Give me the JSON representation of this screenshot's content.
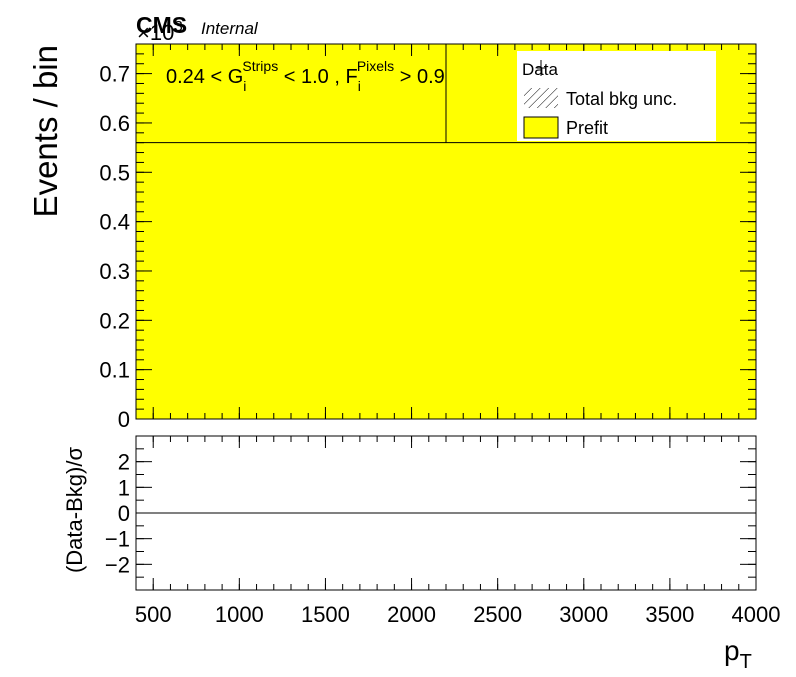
{
  "header": {
    "cms_label": "CMS",
    "internal_label": "Internal",
    "exponent_label": "×10",
    "exponent_power": "3"
  },
  "region_label": {
    "part1": "0.24 < G",
    "g_sub": "i",
    "g_sup": "Strips",
    "part2": " < 1.0 , F",
    "f_sub": "i",
    "f_sup": "Pixels",
    "part3": " > 0.9"
  },
  "legend": {
    "items": [
      {
        "label": "Data",
        "marker": "point"
      },
      {
        "label": "Total bkg unc.",
        "marker": "hatch"
      },
      {
        "label": "Prefit",
        "marker": "fill"
      }
    ]
  },
  "colors": {
    "prefit_fill": "#ffff00",
    "axis": "#000000",
    "background": "#ffffff"
  },
  "chart_data": [
    {
      "type": "bar",
      "panel": "main",
      "ylabel": "Events / bin",
      "y_multiplier": "×10^3",
      "ylim": [
        0,
        0.76
      ],
      "yticks": [
        0,
        0.1,
        0.2,
        0.3,
        0.4,
        0.5,
        0.6,
        0.7
      ],
      "ytick_labels": [
        "0",
        "0.1",
        "0.2",
        "0.3",
        "0.4",
        "0.5",
        "0.6",
        "0.7"
      ],
      "xlim": [
        400,
        4000
      ],
      "bins": [
        {
          "x_low": 400,
          "x_high": 2200,
          "prefit": 0.56
        },
        {
          "x_low": 2200,
          "x_high": 4000,
          "prefit": 0.56
        }
      ],
      "bin_edge_line_x": 2200,
      "series": [
        {
          "name": "Prefit",
          "values": [
            0.56,
            0.56
          ]
        }
      ]
    },
    {
      "type": "line",
      "panel": "ratio",
      "ylabel": "(Data-Bkg)/σ",
      "ylim": [
        -3,
        3
      ],
      "yticks": [
        -2,
        -1,
        0,
        1,
        2
      ],
      "ytick_labels": [
        "−2",
        "−1",
        "0",
        "1",
        "2"
      ],
      "reference_line_y": 0,
      "xlim": [
        400,
        4000
      ],
      "xticks": [
        500,
        1000,
        1500,
        2000,
        2500,
        3000,
        3500,
        4000
      ],
      "xtick_labels": [
        "500",
        "1000",
        "1500",
        "2000",
        "2500",
        "3000",
        "3500",
        "4000"
      ],
      "xlabel": "p",
      "xlabel_sub": "T"
    }
  ]
}
